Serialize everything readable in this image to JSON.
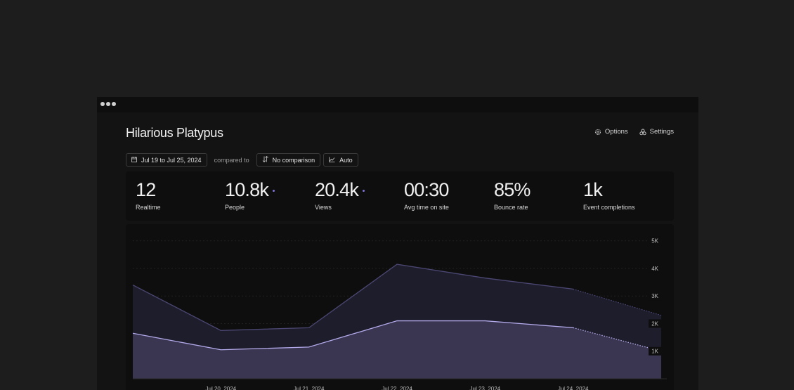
{
  "app": {
    "title": "Hilarious Platypus",
    "options_label": "Options",
    "settings_label": "Settings"
  },
  "toolbar": {
    "date_range": "Jul 19 to Jul 25, 2024",
    "compared_to": "compared to",
    "comparison": "No comparison",
    "interval": "Auto"
  },
  "stats": [
    {
      "value": "12",
      "label": "Realtime",
      "dot": false
    },
    {
      "value": "10.8k",
      "label": "People",
      "dot": true
    },
    {
      "value": "20.4k",
      "label": "Views",
      "dot": true
    },
    {
      "value": "00:30",
      "label": "Avg time on site",
      "dot": false
    },
    {
      "value": "85%",
      "label": "Bounce rate",
      "dot": false
    },
    {
      "value": "1k",
      "label": "Event completions",
      "dot": false
    }
  ],
  "colors": {
    "accent": "#7e73d6",
    "views_fill": "#1e1d2c",
    "views_line": "#4b4773",
    "people_fill": "#3a3651",
    "people_line": "#b3aaea"
  },
  "chart_data": {
    "type": "area",
    "x": [
      "Jul 19, 2024",
      "Jul 20, 2024",
      "Jul 21, 2024",
      "Jul 22, 2024",
      "Jul 23, 2024",
      "Jul 24, 2024",
      "Jul 25, 2024"
    ],
    "x_tick_labels": [
      "Jul 20, 2024",
      "Jul 21, 2024",
      "Jul 22, 2024",
      "Jul 23, 2024",
      "Jul 24, 2024"
    ],
    "y_ticks": [
      1000,
      2000,
      3000,
      4000,
      5000
    ],
    "y_tick_labels": [
      "1K",
      "2K",
      "3K",
      "4K",
      "5K"
    ],
    "ylim": [
      0,
      5400
    ],
    "grid": true,
    "series": [
      {
        "values": [
          3400,
          1750,
          1850,
          4150,
          3650,
          3250,
          2300
        ],
        "partial_last": true
      },
      {
        "values": [
          1650,
          1050,
          1150,
          2100,
          2100,
          1850,
          1000
        ],
        "partial_last": true
      }
    ]
  }
}
